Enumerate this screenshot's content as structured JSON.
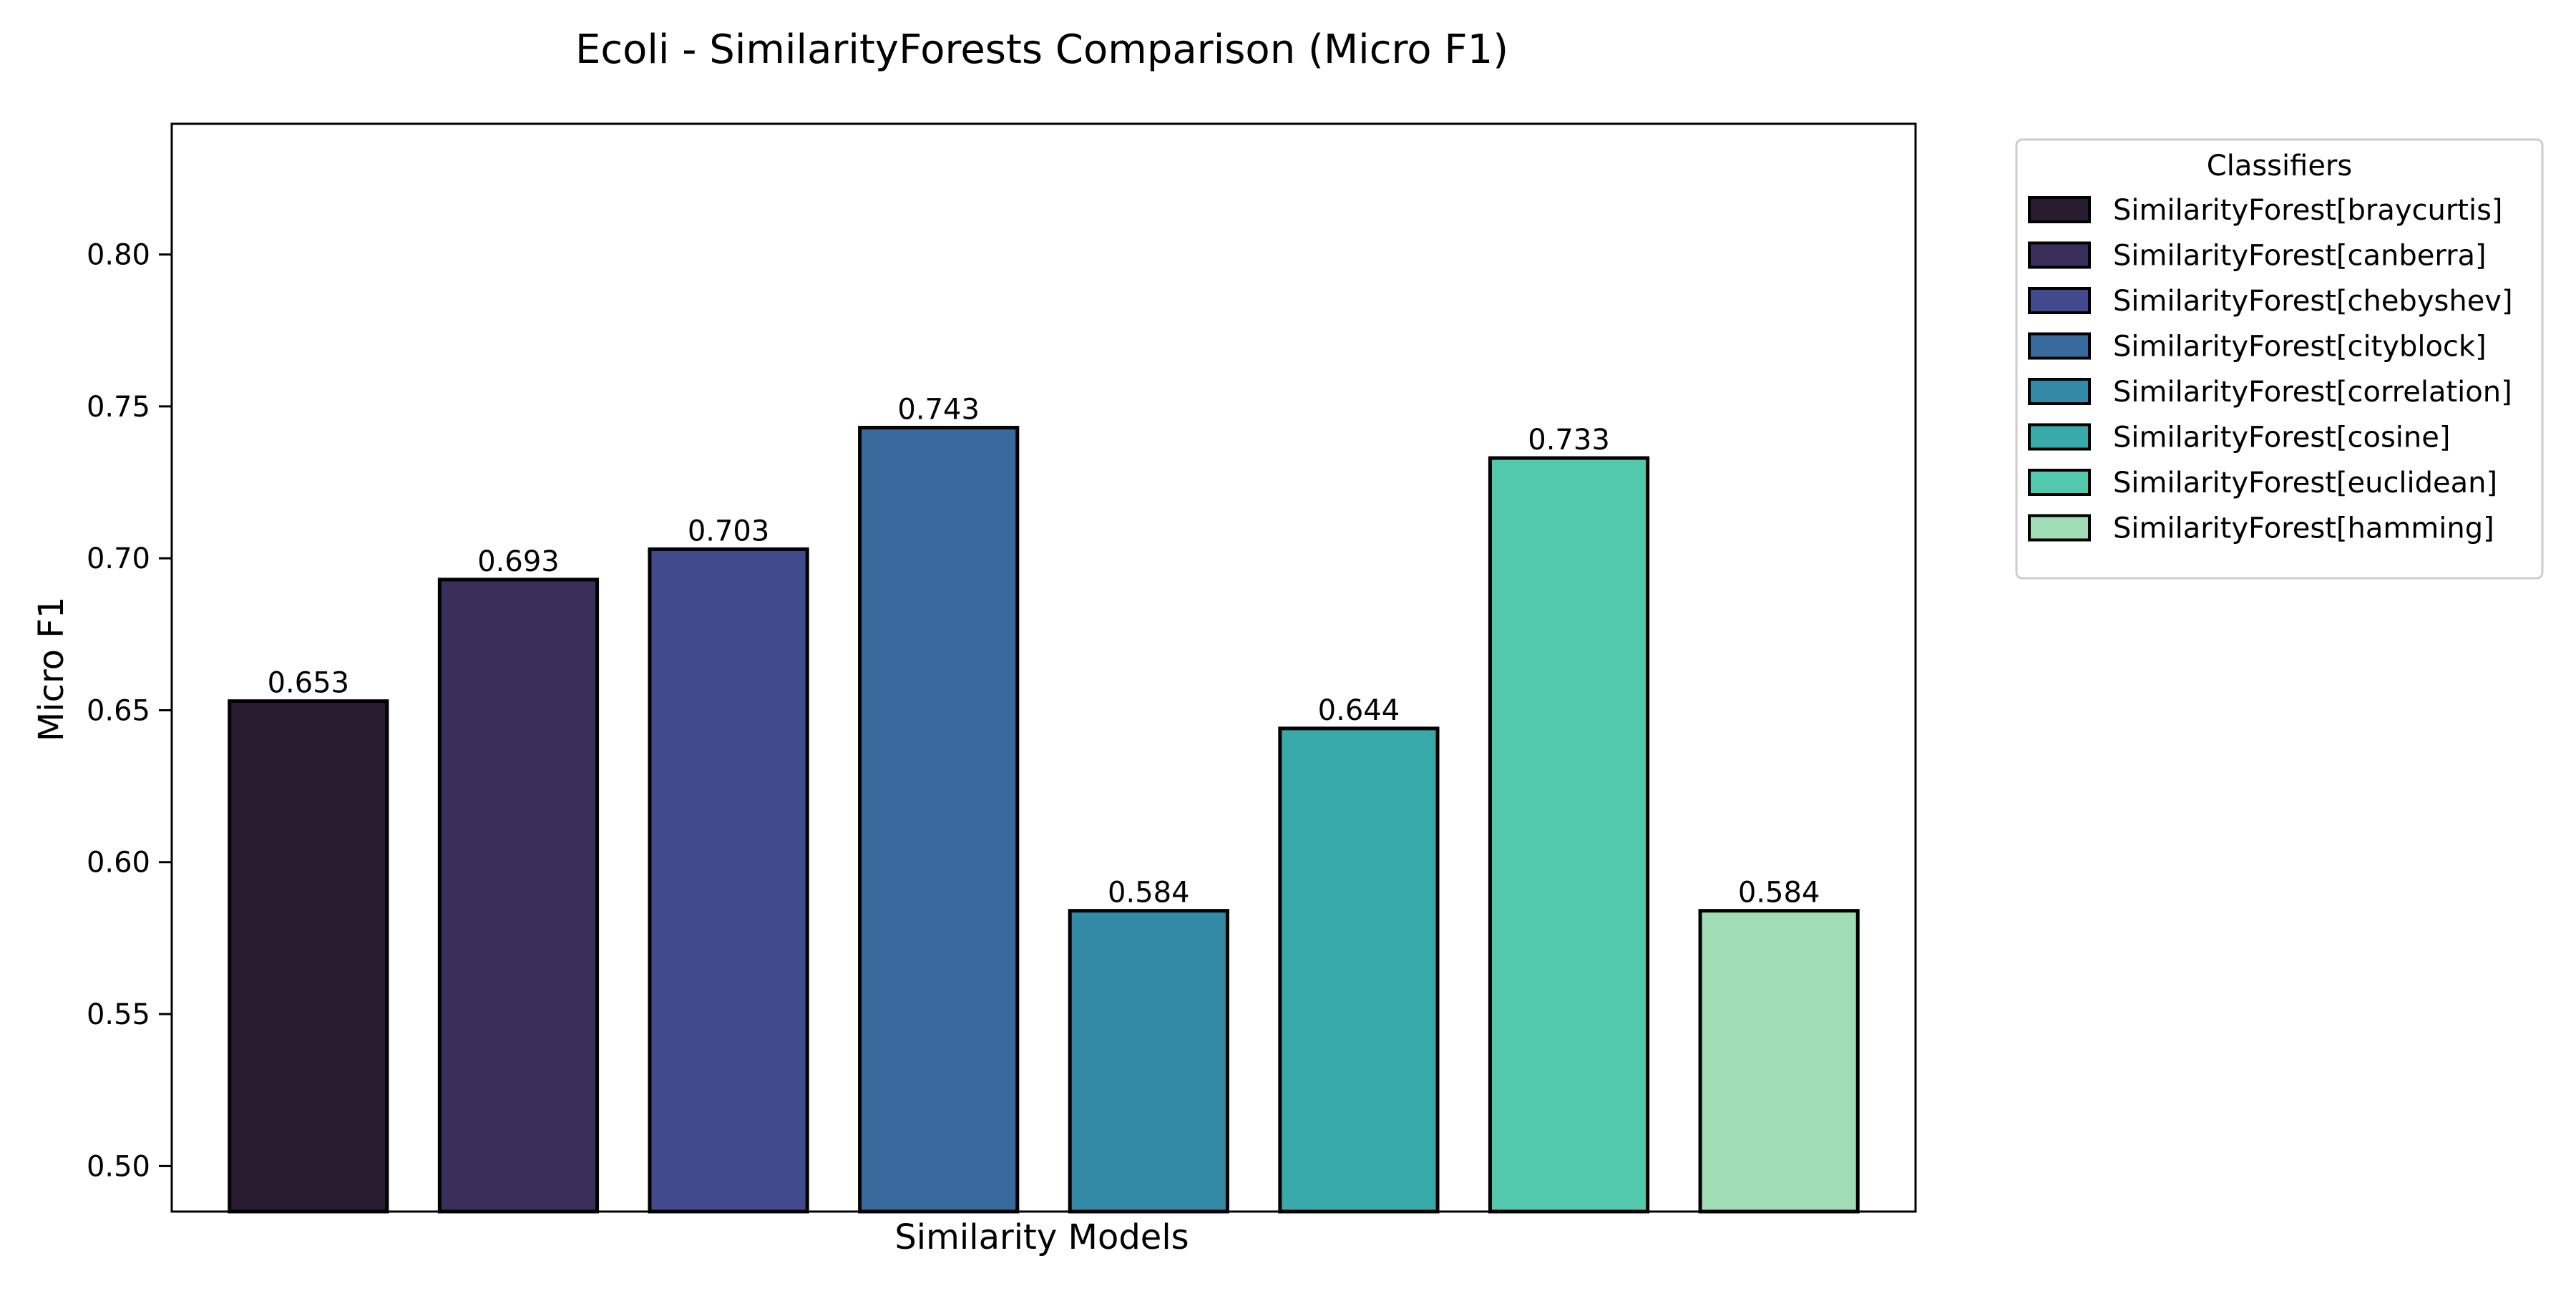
{
  "chart_data": {
    "type": "bar",
    "title": "Ecoli - SimilarityForests Comparison (Micro F1)",
    "xlabel": "Similarity Models",
    "ylabel": "Micro F1",
    "ylim": [
      0.485,
      0.843
    ],
    "yticks": [
      0.5,
      0.55,
      0.6,
      0.65,
      0.7,
      0.75,
      0.8
    ],
    "ytick_labels": [
      "0.50",
      "0.55",
      "0.60",
      "0.65",
      "0.70",
      "0.75",
      "0.80"
    ],
    "grid": false,
    "legend_title": "Classifiers",
    "legend_position": "outside-right-top",
    "categories": [
      "SimilarityForest[braycurtis]",
      "SimilarityForest[canberra]",
      "SimilarityForest[chebyshev]",
      "SimilarityForest[cityblock]",
      "SimilarityForest[correlation]",
      "SimilarityForest[cosine]",
      "SimilarityForest[euclidean]",
      "SimilarityForest[hamming]"
    ],
    "values": [
      0.653,
      0.693,
      0.703,
      0.743,
      0.584,
      0.644,
      0.733,
      0.584
    ],
    "value_labels": [
      "0.653",
      "0.693",
      "0.703",
      "0.743",
      "0.584",
      "0.644",
      "0.733",
      "0.584"
    ],
    "colors": [
      "#2a1c30",
      "#3c2e5a",
      "#414a8c",
      "#386a9e",
      "#328aa6",
      "#38aaaa",
      "#52c8ac",
      "#a0ddb6"
    ]
  }
}
